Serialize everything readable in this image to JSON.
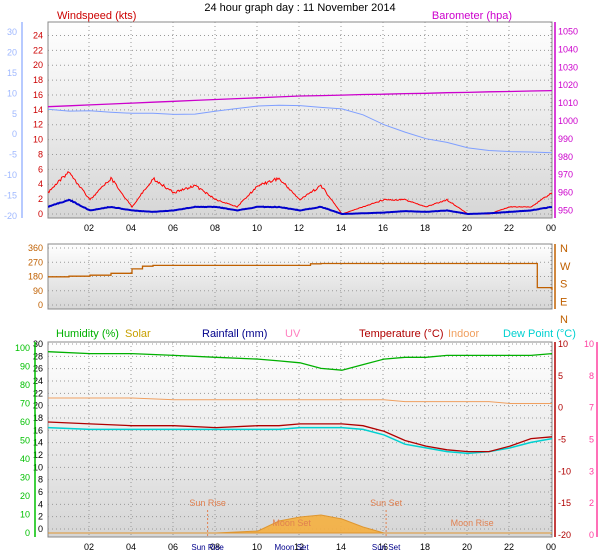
{
  "title": "24 hour graph day : 11 November 2014",
  "colors": {
    "wind": "#cc0000",
    "gust": "#ff0000",
    "avgwind": "#0000cc",
    "baro": "#cc00cc",
    "baroline": "#7f9fff",
    "dir": "#c06000",
    "humidity": "#00b000",
    "solar": "#c8a000",
    "rainfall": "#00008b",
    "uv": "#ff80c0",
    "temperature": "#b00000",
    "indoor": "#f0a060",
    "dewpoint": "#00d0d0",
    "tempaxis": "#ff40a0",
    "windaxis": "#9fb8ff",
    "humaxis": "#00c000"
  },
  "xticks": [
    "02",
    "04",
    "06",
    "08",
    "10",
    "12",
    "14",
    "16",
    "18",
    "20",
    "22",
    "00"
  ],
  "chart_data": [
    {
      "type": "line",
      "name": "wind-barometer",
      "title": "24 hour graph day : 11 November 2014",
      "y1label": "Windspeed (kts)",
      "y2label": "Barometer (hpa)",
      "y1ticks": [
        "24",
        "22",
        "20",
        "18",
        "16",
        "14",
        "12",
        "10",
        "8",
        "6",
        "4",
        "2",
        "0"
      ],
      "ylim_wind": [
        0,
        25
      ],
      "y2ticks": [
        "1050",
        "1040",
        "1030",
        "1020",
        "1010",
        "1000",
        "990",
        "980",
        "970",
        "960",
        "950"
      ],
      "ylim_baro": [
        948,
        1052
      ],
      "y3ticks": [
        "30",
        "20",
        "15",
        "10",
        "5",
        "0",
        "-5",
        "-10",
        "-15",
        "-20"
      ],
      "x": [
        0,
        1,
        2,
        3,
        4,
        5,
        6,
        7,
        8,
        9,
        10,
        11,
        12,
        13,
        14,
        15,
        16,
        17,
        18,
        19,
        20,
        21,
        22,
        23,
        24
      ],
      "series": [
        {
          "name": "Gust",
          "values": [
            3,
            6,
            2,
            5,
            1,
            5,
            3,
            4,
            2,
            1,
            4,
            5,
            2,
            4,
            0,
            1,
            2,
            2,
            1,
            2,
            0,
            0,
            1,
            1,
            3
          ]
        },
        {
          "name": "Average",
          "values": [
            1,
            2,
            0.5,
            1,
            0.5,
            0.3,
            0.5,
            1,
            1,
            0.5,
            1,
            1,
            0.5,
            1,
            0,
            0.1,
            0.2,
            0.4,
            0.3,
            0.5,
            0,
            0.1,
            0.3,
            0.5,
            1
          ]
        },
        {
          "name": "Barometer",
          "values": [
            1008,
            1008.5,
            1009,
            1009.5,
            1010,
            1010.5,
            1011,
            1011.5,
            1012,
            1012.5,
            1013,
            1013.5,
            1014,
            1014.2,
            1014.5,
            1014.8,
            1015,
            1015.3,
            1015.5,
            1015.8,
            1016,
            1016.3,
            1016.5,
            1016.8,
            1017
          ]
        },
        {
          "name": "Temperature",
          "values": [
            9,
            8.5,
            8.6,
            8.2,
            7.9,
            7.9,
            7.6,
            7.7,
            8.5,
            9.2,
            9.9,
            10.1,
            10,
            9.5,
            9.1,
            7.5,
            4.8,
            2.8,
            1,
            0,
            -1.5,
            -2.2,
            -2.5,
            -2.6,
            -2.8
          ]
        }
      ]
    },
    {
      "type": "line",
      "name": "wind-direction",
      "yticks": [
        "360",
        "270",
        "180",
        "90",
        "0"
      ],
      "ylim": [
        0,
        360
      ],
      "compass": [
        "N",
        "W",
        "S",
        "E",
        "N"
      ],
      "x": [
        0,
        1,
        2,
        3,
        4,
        4.5,
        5,
        6,
        8,
        10,
        12,
        12.5,
        13,
        16,
        20,
        22,
        23,
        23.3,
        24
      ],
      "values": [
        178,
        182,
        188,
        200,
        228,
        245,
        250,
        250,
        250,
        250,
        250,
        260,
        262,
        262,
        262,
        262,
        262,
        110,
        95
      ]
    },
    {
      "type": "line",
      "name": "humidity-temperature",
      "legend": [
        "Humidity (%)",
        "Solar",
        "Rainfall (mm)",
        "UV",
        "Temperature (°C)",
        "Indoor",
        "Dew Point (°C)"
      ],
      "yticks_humidity": [
        "100",
        "90",
        "80",
        "70",
        "60",
        "50",
        "40",
        "30",
        "20",
        "10",
        "0"
      ],
      "ylim_humidity": [
        0,
        100
      ],
      "yticks_temp": [
        "30",
        "28",
        "26",
        "24",
        "22",
        "20",
        "18",
        "16",
        "14",
        "12",
        "10",
        "8",
        "6",
        "4",
        "2",
        "0"
      ],
      "ylim_temp": [
        0,
        31
      ],
      "yticks_right": [
        "10",
        "5",
        "0",
        "-5",
        "-10",
        "-15",
        "-20"
      ],
      "ylim_right": [
        -20,
        10
      ],
      "x": [
        0,
        2,
        4,
        6,
        8,
        10,
        11,
        12,
        13,
        14,
        15,
        16,
        17,
        18,
        19,
        20,
        21,
        22,
        23,
        24
      ],
      "series": [
        {
          "name": "Humidity (%)",
          "values": [
            98,
            97,
            97,
            96,
            95,
            94,
            93,
            92,
            89,
            88,
            91,
            94,
            95,
            95,
            96,
            96,
            96,
            96,
            96,
            97
          ]
        },
        {
          "name": "Temperature (°C)",
          "values": [
            60,
            59,
            58,
            58,
            57,
            58,
            58,
            59,
            59,
            59,
            58,
            55,
            50,
            47,
            45,
            44,
            44,
            47,
            51,
            52
          ]
        },
        {
          "name": "Dew Point (°C)",
          "values": [
            57,
            56,
            56,
            56,
            56,
            56,
            56,
            57,
            57,
            57,
            56,
            53,
            48,
            46,
            44,
            43,
            44,
            46,
            49,
            51
          ]
        },
        {
          "name": "Indoor",
          "values": [
            73,
            73,
            73,
            72,
            72,
            72,
            72,
            72,
            72,
            72,
            72,
            72,
            71,
            71,
            71,
            71,
            71,
            70,
            70,
            70
          ]
        },
        {
          "name": "Solar",
          "values": [
            0,
            0,
            0,
            0,
            0,
            1,
            6,
            8,
            9,
            7,
            3,
            0,
            0,
            0,
            0,
            0,
            0,
            0,
            0,
            0
          ]
        }
      ],
      "annotations": [
        "Sun Rise",
        "Sun Set",
        "Moon Set",
        "Moon Rise"
      ],
      "xlabel_extras": [
        "Sun Rise",
        "Moon Set",
        "Sun Set"
      ]
    }
  ]
}
